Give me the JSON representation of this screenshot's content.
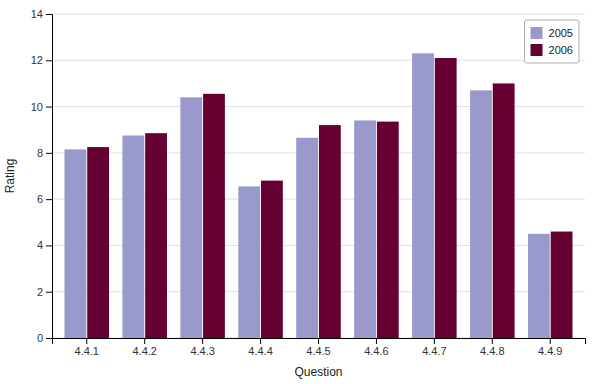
{
  "chart_data": {
    "type": "bar",
    "xlabel": "Question",
    "ylabel": "Rating",
    "categories": [
      "4.4.1",
      "4.4.2",
      "4.4.3",
      "4.4.4",
      "4.4.5",
      "4.4.6",
      "4.4.7",
      "4.4.8",
      "4.4.9"
    ],
    "series": [
      {
        "name": "2005",
        "color": "#9999CC",
        "values": [
          8.15,
          8.75,
          10.4,
          6.55,
          8.65,
          9.4,
          12.3,
          10.7,
          4.5
        ]
      },
      {
        "name": "2006",
        "color": "#660033",
        "values": [
          8.25,
          8.85,
          10.55,
          6.8,
          9.2,
          9.35,
          12.1,
          11.0,
          4.6
        ]
      }
    ],
    "ylim": [
      0,
      14
    ],
    "yticks": [
      0,
      2,
      4,
      6,
      8,
      10,
      12,
      14
    ],
    "grid": true,
    "legend": "upper right"
  }
}
